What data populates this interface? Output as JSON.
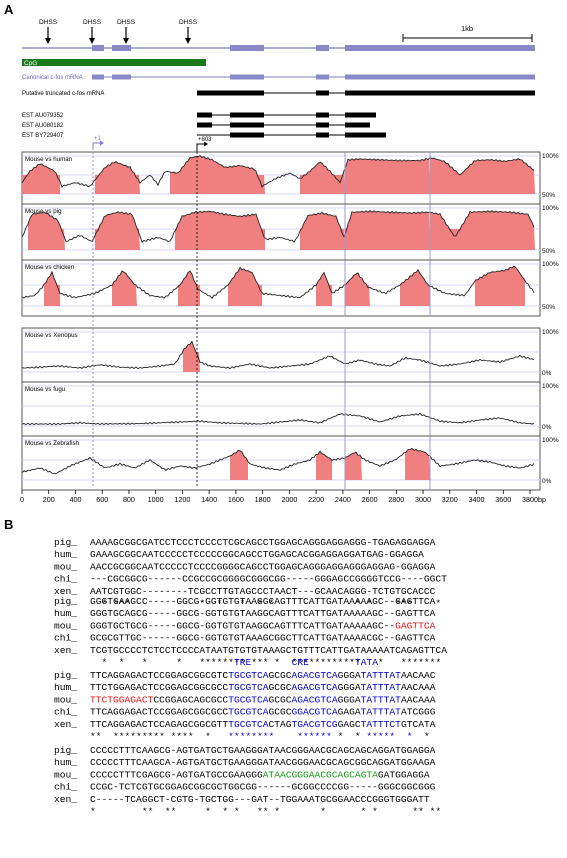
{
  "panels": {
    "a": "A",
    "b": "B"
  },
  "dhss": [
    "DHSS",
    "DHSS",
    "DHSS",
    "DHSS"
  ],
  "scale_label": "1kb",
  "tracks": {
    "cpg": "CpG",
    "canonical": "Canonical c-fos mRNA",
    "truncated": "Putative truncated c-fos mRNA",
    "est1": "EST AU079352",
    "est2": "EST AU080182",
    "est3": "EST BY729407"
  },
  "markers": {
    "plus1": "+1",
    "plus803": "+803"
  },
  "colors": {
    "exon": "#8a88c8",
    "cpg": "#1a7a1a",
    "peak": "#f08080",
    "line": "#7e7cc0",
    "blue": "#0000cc",
    "red": "#e01010",
    "green": "#119911"
  },
  "comparisons": [
    {
      "label": "Mouse vs human",
      "top": "100%",
      "bottom": "50%"
    },
    {
      "label": "Mouse vs pig",
      "top": "100%",
      "bottom": "50%"
    },
    {
      "label": "Mouse vs chicken",
      "top": "100%",
      "bottom": "50%"
    },
    {
      "label": "Mouse vs Xenopus",
      "top": "100%",
      "bottom": "0%"
    },
    {
      "label": "Mouse vs fugu",
      "top": "100%",
      "bottom": "0%"
    },
    {
      "label": "Mouse vs Zebrafish",
      "top": "100%",
      "bottom": "0%"
    }
  ],
  "x_axis": {
    "ticks": [
      "0",
      "200",
      "400",
      "600",
      "800",
      "1000",
      "1200",
      "1400",
      "1600",
      "1800",
      "2000",
      "2200",
      "2400",
      "2600",
      "2800",
      "3000",
      "3200",
      "3400",
      "3600",
      "3800"
    ],
    "unit": "bp"
  },
  "alignment": {
    "blocks": [
      {
        "rows": [
          {
            "name": "pig_",
            "segments": [
              {
                "t": "AAAAGCGGCGATCCTCCCTCCCCTCGCAGCCTGGAGCAGGGAGGAGGG-TGAGAGGAGGA"
              }
            ]
          },
          {
            "name": "hum_",
            "segments": [
              {
                "t": "GAAAGCGGCAATCCCCCTCCCCCGGCAGCCTGGAGCACGGAGGAGGATGAG-GGAGGA"
              }
            ]
          },
          {
            "name": "mou_",
            "segments": [
              {
                "t": "AACCGCGGCAATCCCCCTCCCCGGGGCAGCCTGGAGCAGGGAGGAGGGAGGAG-GGAGGA"
              }
            ]
          },
          {
            "name": "chi_",
            "segments": [
              {
                "t": "---CGCGGCG------CCGCCGCGGGGCGGGCGG-----GGGAGCCGGGGTCCG----GGCT"
              }
            ]
          },
          {
            "name": "xen_",
            "segments": [
              {
                "t": "AATCGTGGC--------TCGCCTTGTAGCCCTAACT---GCAACAGGG-TCTGTGCACCC"
              }
            ]
          }
        ],
        "stars": "  * ***            *  *   *  * *              * *    ***    *"
      },
      {
        "rows": [
          {
            "name": "pig_",
            "segments": [
              {
                "t": "GGGTGAAGCC-----GGCG-GGTGTGTAAGGCAGTTTCATTGATAAAAAGC--GAGTTCA"
              }
            ]
          },
          {
            "name": "hum_",
            "segments": [
              {
                "t": "GGGTGCAGCG-----GGCG-GGTGTGTAAGGCAGTTTCATTGATAAAAAGC--GAGTTCA"
              }
            ]
          },
          {
            "name": "mou_",
            "segments": [
              {
                "t": "GGGTGCTGCG-----GGCG-GGTGTGTAAGGCAGTTTCATTGATAAAAAGC--"
              },
              {
                "t": "GAGTTCA",
                "c": "red"
              }
            ]
          },
          {
            "name": "chi_",
            "segments": [
              {
                "t": "GCGCGTTGC------GGCG-GGTGTGTAAAGCGGCTTCATTGATAAAACGC--GAGTTCA"
              }
            ]
          },
          {
            "name": "xen_",
            "segments": [
              {
                "t": "TCGTGCCCCTCTCCTCCCCATAATGTGTGTAAAGCTGTTTCATTGATAAAAATCAGAGTTCA"
              }
            ]
          }
        ],
        "stars": "  *  *   *     *   ******** *** *  ************   *   *******"
      },
      {
        "labels": [
          {
            "t": "TRE",
            "col": 25
          },
          {
            "t": "CRE",
            "col": 35
          },
          {
            "t": "TATA",
            "col": 46
          }
        ],
        "rows": [
          {
            "name": "pig_",
            "segments": [
              {
                "t": "TTCAGGAGACTCCGGAGCGGCGTC"
              },
              {
                "t": "TGCGTCA",
                "c": "blue"
              },
              {
                "t": "GCGC"
              },
              {
                "t": "AGACGTCA",
                "c": "blue"
              },
              {
                "t": "GGGA"
              },
              {
                "t": "TATTTAT",
                "c": "blue"
              },
              {
                "t": "AACAAC"
              }
            ]
          },
          {
            "name": "hum_",
            "segments": [
              {
                "t": "TTCTGGAGACTCCGGAGCGGCGCC"
              },
              {
                "t": "TGCGTCA",
                "c": "blue"
              },
              {
                "t": "GCGC"
              },
              {
                "t": "AGACGTCA",
                "c": "blue"
              },
              {
                "t": "GGGA"
              },
              {
                "t": "TATTTAT",
                "c": "blue"
              },
              {
                "t": "AACAAA"
              }
            ]
          },
          {
            "name": "mou_",
            "segments": [
              {
                "t": "TTCTGGAGACT",
                "c": "red"
              },
              {
                "t": "CCGGAGCAGCGCC"
              },
              {
                "t": "TGCGTCA",
                "c": "blue"
              },
              {
                "t": "GCGC"
              },
              {
                "t": "AGACGTCA",
                "c": "blue"
              },
              {
                "t": "GGGA"
              },
              {
                "t": "TATTTAT",
                "c": "blue"
              },
              {
                "t": "AACAAA"
              }
            ]
          },
          {
            "name": "chi_",
            "segments": [
              {
                "t": "TTCAGGAGACTCCGGAGCGGCGCC"
              },
              {
                "t": "TGCGTCA",
                "c": "blue"
              },
              {
                "t": "GCGC"
              },
              {
                "t": "GGACGTCA",
                "c": "blue"
              },
              {
                "t": "GAGA"
              },
              {
                "t": "TATTTAT",
                "c": "blue"
              },
              {
                "t": "ATCGGG"
              }
            ]
          },
          {
            "name": "xen_",
            "segments": [
              {
                "t": "TTCAGGAGACTCCAGAGCGGCGTT"
              },
              {
                "t": "TGCGTCA",
                "c": "blue"
              },
              {
                "t": "CTAG"
              },
              {
                "t": "TGACGTCG",
                "c": "blue"
              },
              {
                "t": "GAGC"
              },
              {
                "t": "TATTTCT",
                "c": "blue"
              },
              {
                "t": "GTCATA"
              }
            ]
          }
        ],
        "stars": "**  ********* ****  *  ",
        "star_segments": [
          {
            "t": "**  ********* ****  *  "
          },
          {
            "t": " ********",
            "c": "blue"
          },
          {
            "t": "   "
          },
          {
            "t": " ******",
            "c": "blue"
          },
          {
            "t": " *  * "
          },
          {
            "t": "*****  *",
            "c": "blue"
          },
          {
            "t": "  *"
          }
        ]
      },
      {
        "rows": [
          {
            "name": "pig_",
            "segments": [
              {
                "t": "CCCCCTTTCAAGCG-AGTGATGCTGAAGGGATAACGGGAACGCAGCAGCAGGATGGAGGA"
              }
            ]
          },
          {
            "name": "hum_",
            "segments": [
              {
                "t": "CCCCCTTTCAAGCA-AGTGATGCTGAAGGGATAACGGGAACGCAGCGGCAGGATGGAAGA"
              }
            ]
          },
          {
            "name": "mou_",
            "segments": [
              {
                "t": "CCCCCTTTCGAGCG-AGTGATGCCGAAGGG"
              },
              {
                "t": "ATAACGGGAACGCAGCAGTA",
                "c": "green"
              },
              {
                "t": "GATGGAGGA"
              }
            ]
          },
          {
            "name": "chi_",
            "segments": [
              {
                "t": "CCGC-TCTCGTGCGGAGCGGCGCTGGCGG------GCGGCCCCGG-----GGGCGGCGGG"
              }
            ]
          },
          {
            "name": "xen_",
            "segments": [
              {
                "t": "C-----TCAGGCT-CGTG-TGCTGG---GAT--TGGAAATGCGGAACCCGGGTGGGATT"
              }
            ]
          }
        ],
        "stars": "*        **  **     *  * *   ** *       *      * *      ** **"
      }
    ]
  }
}
